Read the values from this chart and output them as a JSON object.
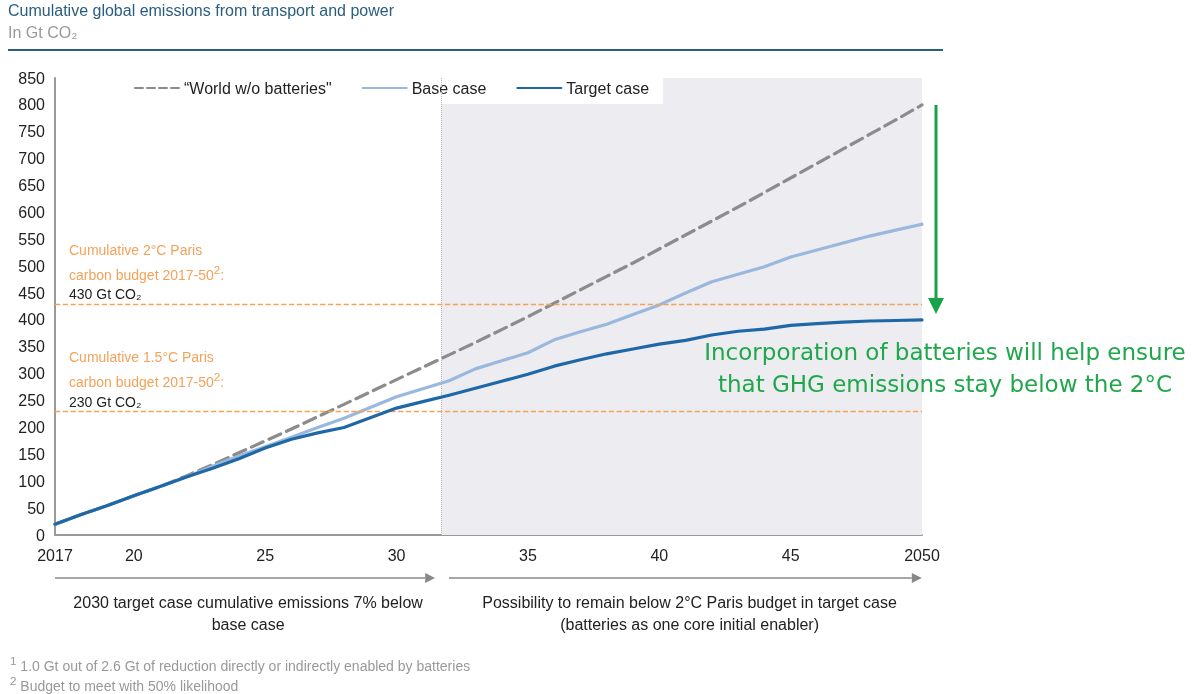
{
  "chart_data": {
    "type": "line",
    "title": "Cumulative global emissions from transport and power",
    "subtitle": "In Gt CO₂",
    "x": [
      2017,
      2018,
      2019,
      2020,
      2021,
      2022,
      2023,
      2024,
      2025,
      2026,
      2027,
      2028,
      2029,
      2030,
      2031,
      2032,
      2033,
      2034,
      2035,
      2036,
      2037,
      2038,
      2039,
      2040,
      2041,
      2042,
      2043,
      2044,
      2045,
      2046,
      2047,
      2048,
      2049,
      2050
    ],
    "series": [
      {
        "name": "“World w/o batteries\"",
        "color": "#8c8c8c",
        "line_style": "dashed",
        "values": [
          20,
          38,
          55,
          73,
          90,
          110,
          131,
          153,
          175,
          197,
          220,
          243,
          266,
          289,
          312,
          335,
          358,
          382,
          406,
          431,
          456,
          481,
          506,
          532,
          558,
          584,
          610,
          637,
          664,
          691,
          718,
          745,
          772,
          800
        ]
      },
      {
        "name": "Base case",
        "color": "#9ab8de",
        "values": [
          20,
          38,
          55,
          73,
          90,
          108,
          128,
          147,
          164,
          182,
          200,
          217,
          237,
          257,
          272,
          287,
          309,
          324,
          339,
          363,
          378,
          392,
          410,
          428,
          450,
          471,
          485,
          499,
          517,
          530,
          543,
          556,
          567,
          578
        ]
      },
      {
        "name": "Target case",
        "color": "#1f68a8",
        "values": [
          20,
          38,
          55,
          73,
          90,
          108,
          124,
          142,
          162,
          178,
          190,
          200,
          218,
          236,
          248,
          260,
          273,
          286,
          299,
          314,
          326,
          337,
          346,
          355,
          362,
          372,
          379,
          383,
          390,
          393,
          396,
          398,
          399,
          400
        ]
      }
    ],
    "xlim": [
      2017,
      2050
    ],
    "xticks": [
      2017,
      {
        "value": 2020,
        "label": "20"
      },
      {
        "value": 2025,
        "label": "25"
      },
      {
        "value": 2030,
        "label": "30"
      },
      {
        "value": 2035,
        "label": "35"
      },
      {
        "value": 2040,
        "label": "40"
      },
      {
        "value": 2045,
        "label": "45"
      },
      2050
    ],
    "ylim": [
      0,
      850
    ],
    "yticks": [
      0,
      50,
      100,
      150,
      200,
      250,
      300,
      350,
      400,
      450,
      500,
      550,
      600,
      650,
      700,
      750,
      800,
      850
    ],
    "legend": "top",
    "marker": "none",
    "ref_lines": [
      {
        "axis": "y",
        "value": 430,
        "label": "Cumulative 2°C Paris\ncarbon budget 2017-50$^{2}$:\n430 Gt CO₂",
        "color": "#f4a259",
        "line_style": "dashed"
      },
      {
        "axis": "y",
        "value": 230,
        "label": "Cumulative 1.5°C Paris\ncarbon budget 2017-50$^{2}$:\n230 Gt CO₂",
        "color": "#f4a259",
        "line_style": "dashed"
      },
      {
        "axis": "x",
        "value": 2031.7,
        "color": "#b4b4b4",
        "line_style": "dotted"
      }
    ],
    "bands": [
      {
        "axis": "x",
        "from": 2031.7,
        "to": 2050,
        "color": "#ececf1"
      }
    ],
    "annotations": [
      "Incorporation of batteries will help ensure that GHG emissions stay below the 2°C",
      "2030 target case cumulative emissions 7% below base case",
      "Possibility to remain below 2°C Paris budget in target case (batteries as one core initial enabler)",
      "$^{1}$ 1.0 Gt out of 2.6 Gt of reduction directly or indirectly enabled by batteries",
      "$^{2}$ Budget to meet with 50% likelihood"
    ]
  }
}
